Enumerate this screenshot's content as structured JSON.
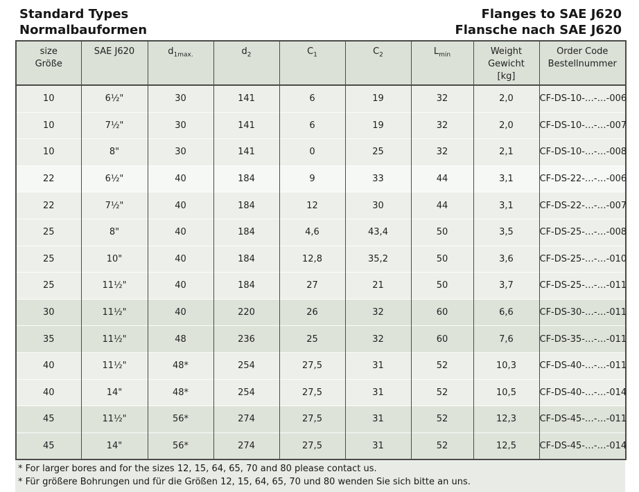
{
  "page": {
    "title_left_line1": "Standard Types",
    "title_left_line2": "Normalbauformen",
    "title_right_line1": "Flanges to SAE J620",
    "title_right_line2": "Flansche nach SAE J620"
  },
  "colors": {
    "header_bg": "#dbe1d7",
    "row_light": "#edf0ea",
    "row_white": "#f6f8f5",
    "row_dark": "#dee3da",
    "footnote_bg": "#e9ece6",
    "border": "#4a4a48",
    "text": "#1f1f1f"
  },
  "table": {
    "columns": [
      {
        "id": "size",
        "lines": [
          "size",
          "Größe"
        ]
      },
      {
        "id": "sae-j620",
        "lines": [
          "SAE J620"
        ]
      },
      {
        "id": "d1max",
        "base": "d",
        "sub": "1max."
      },
      {
        "id": "d2",
        "base": "d",
        "sub": "2"
      },
      {
        "id": "c1",
        "base": "C",
        "sub": "1"
      },
      {
        "id": "c2",
        "base": "C",
        "sub": "2"
      },
      {
        "id": "lmin",
        "base": "L",
        "sub": "min"
      },
      {
        "id": "weight",
        "lines": [
          "Weight",
          "Gewicht",
          "[kg]"
        ]
      },
      {
        "id": "order-code",
        "lines": [
          "Order Code",
          "Bestellnummer"
        ]
      }
    ],
    "rows": [
      {
        "shade": "light",
        "cells": [
          "10",
          "6½\"",
          "30",
          "141",
          "6",
          "19",
          "32",
          "2,0",
          "CF-DS-10-…-…-006"
        ]
      },
      {
        "shade": "light",
        "cells": [
          "10",
          "7½\"",
          "30",
          "141",
          "6",
          "19",
          "32",
          "2,0",
          "CF-DS-10-…-…-007"
        ]
      },
      {
        "shade": "light",
        "cells": [
          "10",
          "8\"",
          "30",
          "141",
          "0",
          "25",
          "32",
          "2,1",
          "CF-DS-10-…-…-008"
        ]
      },
      {
        "shade": "white",
        "cells": [
          "22",
          "6½\"",
          "40",
          "184",
          "9",
          "33",
          "44",
          "3,1",
          "CF-DS-22-…-…-006"
        ]
      },
      {
        "shade": "light",
        "cells": [
          "22",
          "7½\"",
          "40",
          "184",
          "12",
          "30",
          "44",
          "3,1",
          "CF-DS-22-…-…-007"
        ]
      },
      {
        "shade": "light",
        "cells": [
          "25",
          "8\"",
          "40",
          "184",
          "4,6",
          "43,4",
          "50",
          "3,5",
          "CF-DS-25-…-…-008"
        ]
      },
      {
        "shade": "light",
        "cells": [
          "25",
          "10\"",
          "40",
          "184",
          "12,8",
          "35,2",
          "50",
          "3,6",
          "CF-DS-25-…-…-010"
        ]
      },
      {
        "shade": "light",
        "cells": [
          "25",
          "11½\"",
          "40",
          "184",
          "27",
          "21",
          "50",
          "3,7",
          "CF-DS-25-…-…-011"
        ]
      },
      {
        "shade": "dark",
        "cells": [
          "30",
          "11½\"",
          "40",
          "220",
          "26",
          "32",
          "60",
          "6,6",
          "CF-DS-30-…-…-011"
        ]
      },
      {
        "shade": "dark",
        "cells": [
          "35",
          "11½\"",
          "48",
          "236",
          "25",
          "32",
          "60",
          "7,6",
          "CF-DS-35-…-…-011"
        ]
      },
      {
        "shade": "light",
        "cells": [
          "40",
          "11½\"",
          "48*",
          "254",
          "27,5",
          "31",
          "52",
          "10,3",
          "CF-DS-40-…-…-011"
        ]
      },
      {
        "shade": "light",
        "cells": [
          "40",
          "14\"",
          "48*",
          "254",
          "27,5",
          "31",
          "52",
          "10,5",
          "CF-DS-40-…-…-014"
        ]
      },
      {
        "shade": "dark",
        "cells": [
          "45",
          "11½\"",
          "56*",
          "274",
          "27,5",
          "31",
          "52",
          "12,3",
          "CF-DS-45-…-…-011"
        ]
      },
      {
        "shade": "dark",
        "cells": [
          "45",
          "14\"",
          "56*",
          "274",
          "27,5",
          "31",
          "52",
          "12,5",
          "CF-DS-45-…-…-014"
        ]
      }
    ]
  },
  "footnotes": [
    "* For larger bores and for the sizes 12, 15, 64, 65, 70 and 80 please contact us.",
    "* Für größere Bohrungen und für die Größen 12, 15, 64, 65, 70 und 80 wenden Sie sich bitte an uns."
  ]
}
